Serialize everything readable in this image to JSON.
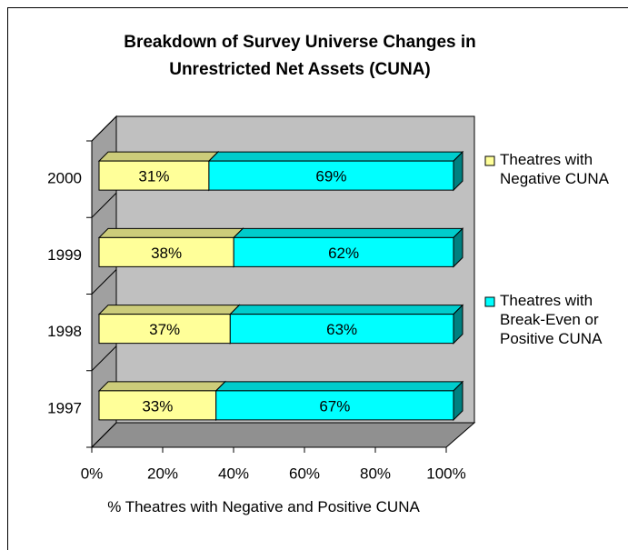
{
  "chart_data": {
    "type": "bar3d_stacked_horizontal",
    "title": "Breakdown of Survey Universe Changes in Unrestricted Net Assets (CUNA)",
    "x_label": "% Theatres with Negative and Positive CUNA",
    "categories": [
      "2000",
      "1999",
      "1998",
      "1997"
    ],
    "series": [
      {
        "name": "Theatres with Negative CUNA",
        "color": "#ffff99",
        "values": [
          31,
          38,
          37,
          33
        ],
        "value_labels": [
          "31%",
          "38%",
          "37%",
          "33%"
        ]
      },
      {
        "name": "Theatres with Break-Even or Positive CUNA",
        "color": "#00ffff",
        "values": [
          69,
          62,
          63,
          67
        ],
        "value_labels": [
          "69%",
          "62%",
          "63%",
          "67%"
        ]
      }
    ],
    "xlim": [
      0,
      100
    ],
    "xticks": [
      {
        "value": 0,
        "label": "0%"
      },
      {
        "value": 20,
        "label": "20%"
      },
      {
        "value": 40,
        "label": "40%"
      },
      {
        "value": 60,
        "label": "60%"
      },
      {
        "value": 80,
        "label": "80%"
      },
      {
        "value": 100,
        "label": "100%"
      }
    ],
    "legend": "right"
  }
}
